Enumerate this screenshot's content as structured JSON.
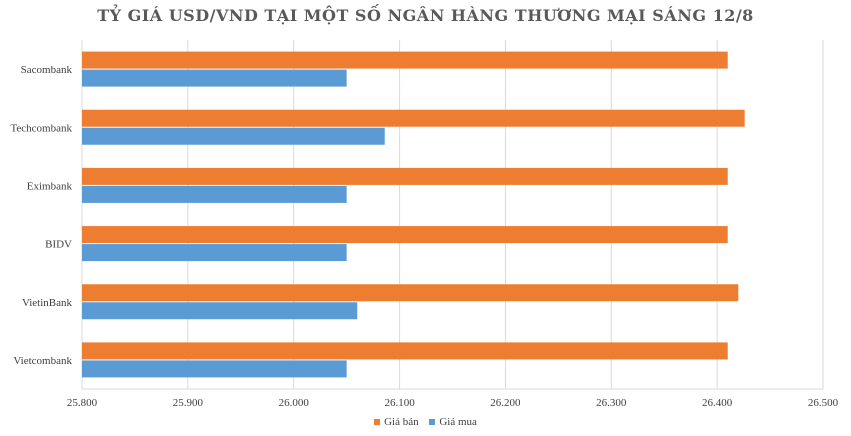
{
  "chart_data": {
    "type": "bar",
    "orientation": "horizontal",
    "title": "TỶ GIÁ USD/VND TẠI MỘT SỐ NGÂN HÀNG THƯƠNG MẠI SÁNG 12/8",
    "categories": [
      "Sacombank",
      "Techcombank",
      "Eximbank",
      "BIDV",
      "VietinBank",
      "Vietcombank"
    ],
    "series": [
      {
        "name": "Giá bán",
        "color": "#ED7D31",
        "values": [
          26410,
          26426,
          26410,
          26410,
          26420,
          26410
        ]
      },
      {
        "name": "Giá mua",
        "color": "#5B9BD5",
        "values": [
          26050,
          26086,
          26050,
          26050,
          26060,
          26050
        ]
      }
    ],
    "xlim": [
      25800,
      26500
    ],
    "xticks": [
      25800,
      25900,
      26000,
      26100,
      26200,
      26300,
      26400,
      26500
    ],
    "xtick_labels": [
      "25.800",
      "25.900",
      "26.000",
      "26.100",
      "26.200",
      "26.300",
      "26.400",
      "26.500"
    ],
    "grid": true,
    "legend_position": "bottom"
  }
}
